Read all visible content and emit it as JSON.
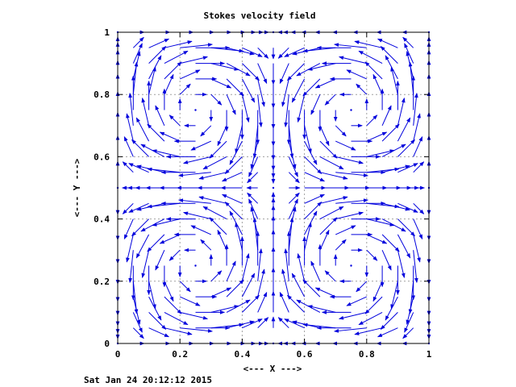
{
  "chart_data": {
    "type": "vector-field",
    "title": "Stokes velocity field",
    "xlabel": "<--- X --->",
    "ylabel": "<--- Y --->",
    "xlim": [
      0,
      1
    ],
    "ylim": [
      0,
      1
    ],
    "xticks": [
      "0",
      "0.2",
      "0.4",
      "0.6",
      "0.8",
      "1"
    ],
    "yticks": [
      "0",
      "0.2",
      "0.4",
      "0.6",
      "0.8",
      "1"
    ],
    "grid": true,
    "grid_n": 21,
    "field": "u = sin(2πx)·cos(2πy), v = -cos(2πx)·sin(2πy)",
    "vortex_centers": [
      [
        0.25,
        0.25
      ],
      [
        0.75,
        0.25
      ],
      [
        0.25,
        0.75
      ],
      [
        0.75,
        0.75
      ]
    ],
    "color": "#0000dd"
  },
  "timestamp": "Sat Jan 24 20:12:12 2015"
}
